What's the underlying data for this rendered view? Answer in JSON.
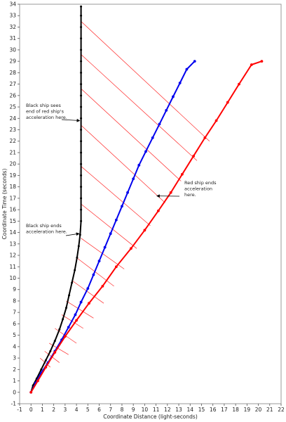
{
  "chart_data": {
    "type": "line",
    "xlabel": "Coordinate Distance (light-seconds)",
    "ylabel": "Coordinate Time (seconds)",
    "xlim": [
      -1,
      22
    ],
    "ylim": [
      -1,
      34
    ],
    "x_ticks": [
      -1,
      0,
      1,
      2,
      3,
      4,
      5,
      6,
      7,
      8,
      9,
      10,
      11,
      12,
      13,
      14,
      15,
      16,
      17,
      18,
      19,
      20,
      21,
      22
    ],
    "y_ticks": [
      -1,
      0,
      1,
      2,
      3,
      4,
      5,
      6,
      7,
      8,
      9,
      10,
      11,
      12,
      13,
      14,
      15,
      16,
      17,
      18,
      19,
      20,
      21,
      22,
      23,
      24,
      25,
      26,
      27,
      28,
      29,
      30,
      31,
      32,
      33,
      34
    ],
    "grid": false,
    "series": [
      {
        "color": "#000000",
        "marker": "small dots",
        "points": [
          [
            0,
            0
          ],
          [
            0.18,
            0.6
          ],
          [
            0.5,
            1.2
          ],
          [
            0.9,
            2.0
          ],
          [
            1.3,
            2.8
          ],
          [
            1.7,
            3.6
          ],
          [
            2.1,
            4.5
          ],
          [
            2.5,
            5.5
          ],
          [
            2.8,
            6.4
          ],
          [
            3.1,
            7.4
          ],
          [
            3.35,
            8.5
          ],
          [
            3.6,
            9.6
          ],
          [
            3.85,
            10.7
          ],
          [
            4.05,
            11.8
          ],
          [
            4.2,
            12.8
          ],
          [
            4.32,
            13.8
          ],
          [
            4.4,
            15
          ],
          [
            4.4,
            16
          ],
          [
            4.4,
            17
          ],
          [
            4.4,
            18
          ],
          [
            4.4,
            19
          ],
          [
            4.4,
            20
          ],
          [
            4.4,
            21
          ],
          [
            4.4,
            22
          ],
          [
            4.4,
            23
          ],
          [
            4.4,
            24
          ],
          [
            4.4,
            25
          ],
          [
            4.4,
            26
          ],
          [
            4.4,
            27
          ],
          [
            4.4,
            28
          ],
          [
            4.4,
            29
          ],
          [
            4.4,
            30
          ],
          [
            4.4,
            31
          ],
          [
            4.4,
            32
          ],
          [
            4.4,
            33
          ],
          [
            4.4,
            33.8
          ]
        ]
      },
      {
        "color": "#0000ee",
        "marker": "dots",
        "points": [
          [
            0,
            0
          ],
          [
            0.4,
            0.8
          ],
          [
            0.9,
            1.7
          ],
          [
            1.5,
            2.6
          ],
          [
            2.1,
            3.6
          ],
          [
            2.7,
            4.6
          ],
          [
            3.3,
            5.7
          ],
          [
            3.9,
            6.8
          ],
          [
            4.4,
            7.9
          ],
          [
            5.0,
            9.1
          ],
          [
            5.5,
            10.3
          ],
          [
            6.0,
            11.5
          ],
          [
            6.5,
            12.7
          ],
          [
            7.0,
            13.9
          ],
          [
            7.5,
            15.1
          ],
          [
            8.0,
            16.3
          ],
          [
            8.5,
            17.5
          ],
          [
            9.0,
            18.7
          ],
          [
            9.5,
            19.9
          ],
          [
            10.1,
            21.1
          ],
          [
            10.7,
            22.3
          ],
          [
            11.3,
            23.5
          ],
          [
            11.9,
            24.7
          ],
          [
            12.5,
            25.9
          ],
          [
            13.1,
            27.1
          ],
          [
            13.7,
            28.3
          ],
          [
            14.4,
            29.0
          ]
        ]
      },
      {
        "color": "#ff0000",
        "marker": "dots",
        "points": [
          [
            0,
            0
          ],
          [
            0.6,
            1.0
          ],
          [
            1.3,
            2.2
          ],
          [
            2.1,
            3.5
          ],
          [
            3.0,
            4.9
          ],
          [
            4.0,
            6.3
          ],
          [
            5.1,
            7.8
          ],
          [
            6.3,
            9.3
          ],
          [
            7.5,
            11.0
          ],
          [
            8.8,
            12.6
          ],
          [
            10.0,
            14.2
          ],
          [
            11.2,
            15.9
          ],
          [
            12.3,
            17.5
          ],
          [
            13.3,
            19.1
          ],
          [
            14.3,
            20.7
          ],
          [
            15.3,
            22.3
          ],
          [
            16.3,
            23.8
          ],
          [
            17.3,
            25.4
          ],
          [
            18.3,
            27.0
          ],
          [
            19.4,
            28.7
          ],
          [
            20.3,
            29.0
          ]
        ]
      }
    ],
    "reference_lines": [
      [
        [
          0.8,
          3.0
        ],
        [
          1.7,
          2.2
        ]
      ],
      [
        [
          1.2,
          3.6
        ],
        [
          2.5,
          2.6
        ]
      ],
      [
        [
          1.6,
          4.3
        ],
        [
          3.3,
          3.3
        ]
      ],
      [
        [
          2.1,
          5.6
        ],
        [
          4.0,
          4.3
        ]
      ],
      [
        [
          2.7,
          6.8
        ],
        [
          4.6,
          5.6
        ]
      ],
      [
        [
          3.1,
          8.0
        ],
        [
          5.5,
          6.5
        ]
      ],
      [
        [
          3.6,
          9.8
        ],
        [
          6.4,
          7.8
        ]
      ],
      [
        [
          4.0,
          11.8
        ],
        [
          7.3,
          9.3
        ]
      ],
      [
        [
          4.4,
          13.5
        ],
        [
          8.2,
          10.8
        ]
      ],
      [
        [
          4.4,
          16.5
        ],
        [
          9.3,
          12.6
        ]
      ],
      [
        [
          4.4,
          19.8
        ],
        [
          10.5,
          14.6
        ]
      ],
      [
        [
          4.4,
          23.4
        ],
        [
          11.8,
          16.6
        ]
      ],
      [
        [
          4.4,
          26.6
        ],
        [
          13.2,
          18.5
        ]
      ],
      [
        [
          4.4,
          29.6
        ],
        [
          14.6,
          20.3
        ]
      ],
      [
        [
          4.4,
          32.5
        ],
        [
          15.7,
          22.0
        ]
      ]
    ],
    "annotations": [
      {
        "lines": [
          "Black ship sees",
          "end of red ship's",
          "acceleration here."
        ],
        "arrow_to": [
          4.4,
          23.8
        ]
      },
      {
        "lines": [
          "Black ship ends",
          "acceleration here."
        ],
        "arrow_to": [
          4.35,
          13.9
        ]
      },
      {
        "lines": [
          "Red ship ends",
          "acceleration",
          "here."
        ],
        "arrow_to": [
          11.2,
          17.2
        ]
      }
    ]
  }
}
